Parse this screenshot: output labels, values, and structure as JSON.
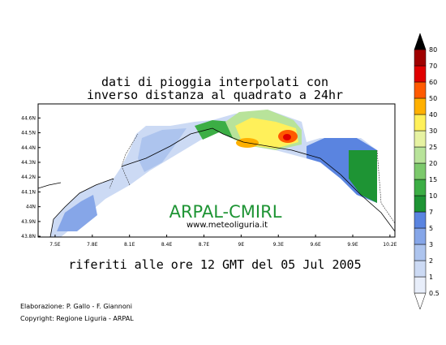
{
  "title": [
    "dati di pioggia interpolati con",
    "inverso distanza al quadrato a 24hr"
  ],
  "subtitle": "riferiti alle ore 12 GMT del 05 Jul 2005",
  "watermark": "ARPAL-CMIRL",
  "website": "www.meteoliguria.it",
  "credits": [
    "Elaborazione: P. Gallo - F. Giannoni",
    "Copyright: Regione Liguria - ARPAL"
  ],
  "map": {
    "xlim": [
      7.363,
      10.24
    ],
    "ylim": [
      43.795,
      44.695
    ],
    "xticks": [
      {
        "value": 7.5,
        "label": "7.5E"
      },
      {
        "value": 7.8,
        "label": "7.8E"
      },
      {
        "value": 8.1,
        "label": "8.1E"
      },
      {
        "value": 8.4,
        "label": "8.4E"
      },
      {
        "value": 8.7,
        "label": "8.7E"
      },
      {
        "value": 9,
        "label": "9E"
      },
      {
        "value": 9.3,
        "label": "9.3E"
      },
      {
        "value": 9.6,
        "label": "9.6E"
      },
      {
        "value": 9.9,
        "label": "9.9E"
      },
      {
        "value": 10.2,
        "label": "10.2E"
      }
    ],
    "yticks": [
      {
        "value": 43.8,
        "label": "43.8N"
      },
      {
        "value": 43.9,
        "label": "43.9N"
      },
      {
        "value": 44,
        "label": "44N"
      },
      {
        "value": 44.1,
        "label": "44.1N"
      },
      {
        "value": 44.2,
        "label": "44.2N"
      },
      {
        "value": 44.3,
        "label": "44.3N"
      },
      {
        "value": 44.4,
        "label": "44.4N"
      },
      {
        "value": 44.5,
        "label": "44.5N"
      },
      {
        "value": 44.6,
        "label": "44.6N"
      }
    ]
  },
  "colorbar": {
    "levels": [
      0.5,
      1,
      2,
      3,
      5,
      7,
      10,
      15,
      20,
      25,
      30,
      40,
      50,
      60,
      70,
      80
    ],
    "colors": [
      "#ffffff",
      "#e8eefa",
      "#ccdaf4",
      "#adc4ee",
      "#86a6e8",
      "#5a84e0",
      "#1e9434",
      "#3cae45",
      "#7cc96c",
      "#b8e39a",
      "#e6f2a2",
      "#fff05a",
      "#ffb000",
      "#ff5a00",
      "#e00000",
      "#a00000",
      "#000000"
    ]
  }
}
